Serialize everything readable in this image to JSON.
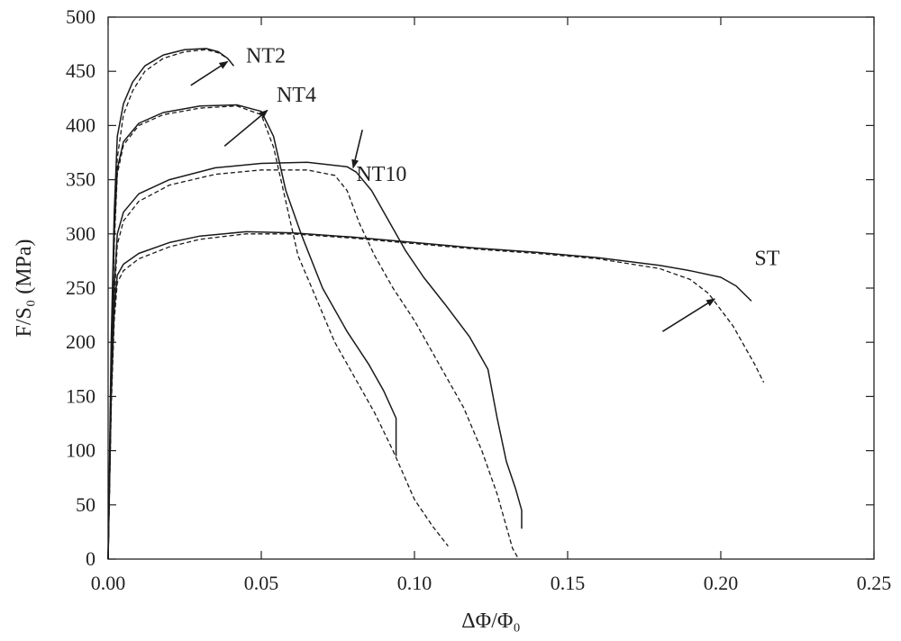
{
  "chart_data": {
    "type": "line",
    "xlabel": "ΔΦ/Φ₀",
    "ylabel": "F/S₀ (MPa)",
    "xlim": [
      0,
      0.25
    ],
    "ylim": [
      0,
      500
    ],
    "x_ticks": [
      0.0,
      0.05,
      0.1,
      0.15,
      0.2,
      0.25
    ],
    "x_tick_labels": [
      "0.00",
      "0.05",
      "0.10",
      "0.15",
      "0.20",
      "0.25"
    ],
    "y_ticks": [
      0,
      50,
      100,
      150,
      200,
      250,
      300,
      350,
      400,
      450,
      500
    ],
    "y_tick_labels": [
      "0",
      "50",
      "100",
      "150",
      "200",
      "250",
      "300",
      "350",
      "400",
      "450",
      "500"
    ],
    "grid": false,
    "line_color": "#1a1a1a",
    "series": [
      {
        "group": "NT2",
        "style": "solid",
        "x": [
          0,
          0.001,
          0.002,
          0.003,
          0.005,
          0.008,
          0.012,
          0.018,
          0.025,
          0.032,
          0.036,
          0.039,
          0.041
        ],
        "y": [
          0,
          200,
          320,
          390,
          420,
          440,
          455,
          465,
          470,
          471,
          468,
          462,
          455
        ]
      },
      {
        "group": "NT2",
        "style": "dashed",
        "x": [
          0,
          0.001,
          0.002,
          0.003,
          0.005,
          0.008,
          0.012,
          0.018,
          0.025,
          0.032,
          0.036,
          0.039,
          0.041
        ],
        "y": [
          0,
          180,
          300,
          370,
          410,
          432,
          450,
          462,
          468,
          470,
          467,
          462,
          455
        ]
      },
      {
        "group": "NT4",
        "style": "solid",
        "x": [
          0,
          0.001,
          0.002,
          0.003,
          0.005,
          0.01,
          0.018,
          0.03,
          0.042,
          0.05,
          0.054,
          0.058,
          0.063,
          0.07,
          0.078,
          0.085,
          0.09,
          0.094,
          0.094
        ],
        "y": [
          0,
          180,
          300,
          360,
          385,
          402,
          412,
          418,
          419,
          413,
          390,
          340,
          300,
          250,
          210,
          180,
          155,
          130,
          95
        ]
      },
      {
        "group": "NT4",
        "style": "dashed",
        "x": [
          0,
          0.001,
          0.002,
          0.003,
          0.005,
          0.01,
          0.018,
          0.03,
          0.042,
          0.05,
          0.054,
          0.058,
          0.062,
          0.068,
          0.074,
          0.08,
          0.087,
          0.093,
          0.1,
          0.106,
          0.111
        ],
        "y": [
          0,
          170,
          290,
          355,
          382,
          400,
          410,
          416,
          418,
          410,
          380,
          330,
          280,
          240,
          200,
          170,
          135,
          100,
          55,
          30,
          12
        ]
      },
      {
        "group": "NT10",
        "style": "solid",
        "x": [
          0,
          0.001,
          0.002,
          0.003,
          0.005,
          0.01,
          0.02,
          0.035,
          0.05,
          0.065,
          0.078,
          0.081,
          0.086,
          0.091,
          0.097,
          0.103,
          0.11,
          0.118,
          0.124,
          0.127,
          0.13,
          0.133,
          0.135,
          0.135
        ],
        "y": [
          0,
          150,
          250,
          300,
          320,
          337,
          350,
          361,
          365,
          366,
          362,
          357,
          340,
          315,
          285,
          260,
          235,
          205,
          175,
          130,
          90,
          65,
          45,
          28
        ]
      },
      {
        "group": "NT10",
        "style": "dashed",
        "x": [
          0,
          0.001,
          0.002,
          0.003,
          0.005,
          0.01,
          0.02,
          0.035,
          0.05,
          0.065,
          0.074,
          0.078,
          0.082,
          0.087,
          0.093,
          0.1,
          0.108,
          0.116,
          0.122,
          0.127,
          0.13,
          0.132,
          0.134
        ],
        "y": [
          0,
          140,
          240,
          290,
          312,
          330,
          345,
          355,
          359,
          359,
          354,
          340,
          310,
          280,
          250,
          220,
          180,
          140,
          100,
          60,
          30,
          10,
          0
        ]
      },
      {
        "group": "ST",
        "style": "solid",
        "x": [
          0,
          0.001,
          0.002,
          0.003,
          0.005,
          0.01,
          0.02,
          0.03,
          0.045,
          0.06,
          0.08,
          0.1,
          0.12,
          0.14,
          0.16,
          0.18,
          0.19,
          0.2,
          0.205,
          0.21
        ],
        "y": [
          0,
          150,
          230,
          262,
          272,
          282,
          292,
          298,
          302,
          301,
          297,
          292,
          287,
          283,
          278,
          271,
          266,
          260,
          252,
          238
        ]
      },
      {
        "group": "ST",
        "style": "dashed",
        "x": [
          0,
          0.001,
          0.002,
          0.003,
          0.005,
          0.01,
          0.02,
          0.03,
          0.045,
          0.06,
          0.08,
          0.1,
          0.12,
          0.14,
          0.16,
          0.18,
          0.19,
          0.196,
          0.2,
          0.204,
          0.207,
          0.211,
          0.214
        ],
        "y": [
          0,
          140,
          220,
          255,
          266,
          277,
          288,
          295,
          300,
          300,
          296,
          291,
          286,
          282,
          277,
          268,
          258,
          245,
          230,
          215,
          200,
          180,
          163
        ]
      }
    ],
    "annotations": [
      {
        "text": "NT2",
        "x": 0.045,
        "y": 458,
        "arrow_from": [
          0.027,
          437
        ],
        "arrow_to": [
          0.039,
          459
        ]
      },
      {
        "text": "NT4",
        "x": 0.055,
        "y": 422,
        "arrow_from": [
          0.038,
          381
        ],
        "arrow_to": [
          0.052,
          414
        ]
      },
      {
        "text": "NT10",
        "x": 0.081,
        "y": 349,
        "arrow_from": [
          0.083,
          396
        ],
        "arrow_to": [
          0.08,
          361
        ]
      },
      {
        "text": "ST",
        "x": 0.211,
        "y": 271,
        "arrow_from": [
          0.181,
          210
        ],
        "arrow_to": [
          0.198,
          240
        ]
      }
    ]
  }
}
